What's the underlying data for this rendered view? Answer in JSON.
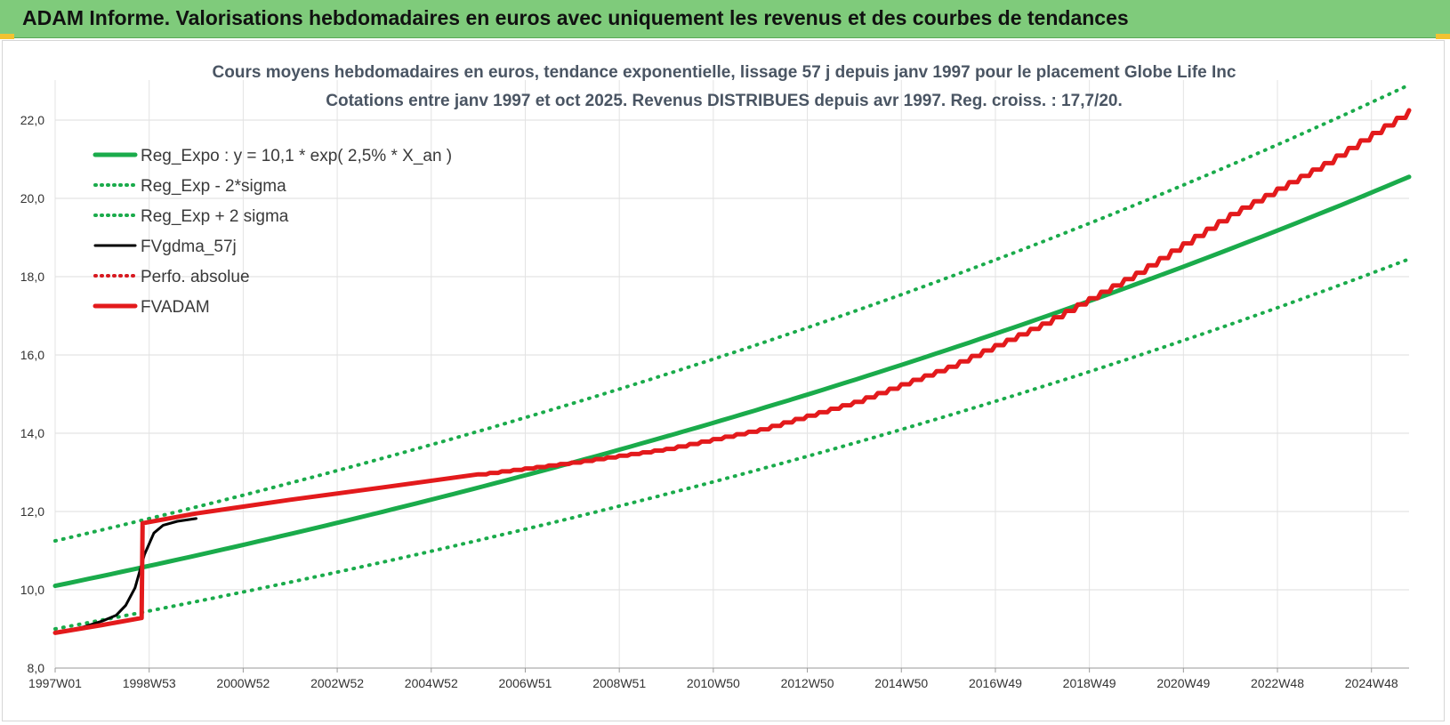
{
  "header": {
    "title": "ADAM Informe. Valorisations hebdomadaires en euros avec uniquement les revenus et des courbes de tendances"
  },
  "chart_data": {
    "type": "line",
    "title_lines": [
      "Cours moyens hebdomadaires en euros, tendance exponentielle, lissage 57 j depuis janv 1997 pour le placement Globe Life Inc",
      "Cotations entre janv 1997 et oct 2025. Revenus DISTRIBUES depuis avr 1997. Reg. croiss. : 17,7/20."
    ],
    "xlabel": "",
    "ylabel": "",
    "xlim": [
      1997.0,
      2025.8
    ],
    "ylim": [
      8.0,
      23.0
    ],
    "y_ticks": [
      8.0,
      10.0,
      12.0,
      14.0,
      16.0,
      18.0,
      20.0,
      22.0
    ],
    "y_tick_labels": [
      "8,0",
      "10,0",
      "12,0",
      "14,0",
      "16,0",
      "18,0",
      "20,0",
      "22,0"
    ],
    "x_ticks": [
      1997.0,
      1999.0,
      2001.0,
      2003.0,
      2005.0,
      2007.0,
      2009.0,
      2011.0,
      2013.0,
      2015.0,
      2017.0,
      2019.0,
      2021.0,
      2023.0,
      2025.0
    ],
    "x_tick_labels": [
      "1997W01",
      "1998W53",
      "2000W52",
      "2002W52",
      "2004W52",
      "2006W51",
      "2008W51",
      "2010W50",
      "2012W50",
      "2014W50",
      "2016W49",
      "2018W49",
      "2020W49",
      "2022W48",
      "2024W48"
    ],
    "grid": true,
    "legend_position": "top-left",
    "series": [
      {
        "name": "Reg_Expo : y = 10,1 * exp( 2,5% *  X_an )",
        "style": "solid-thick",
        "color": "#1aab4b",
        "x": [
          1997.0,
          2001.0,
          2005.0,
          2009.0,
          2013.0,
          2017.0,
          2021.0,
          2025.8
        ],
        "values": [
          10.1,
          11.17,
          12.34,
          13.64,
          15.07,
          16.65,
          18.4,
          20.55
        ]
      },
      {
        "name": "Reg_Exp - 2*sigma",
        "style": "dotted",
        "color": "#1aab4b",
        "x": [
          1997.0,
          2001.0,
          2005.0,
          2009.0,
          2013.0,
          2017.0,
          2021.0,
          2025.8
        ],
        "values": [
          9.0,
          9.95,
          10.99,
          12.15,
          13.43,
          14.84,
          16.4,
          18.45
        ]
      },
      {
        "name": "Reg_Exp + 2 sigma",
        "style": "dotted",
        "color": "#1aab4b",
        "x": [
          1997.0,
          2001.0,
          2005.0,
          2009.0,
          2013.0,
          2017.0,
          2021.0,
          2025.8
        ],
        "values": [
          11.25,
          12.43,
          13.74,
          15.19,
          16.79,
          18.55,
          20.5,
          22.9
        ]
      },
      {
        "name": "FVgdma_57j",
        "style": "solid",
        "color": "#000000",
        "x": [
          1997.0,
          1997.6,
          1998.0,
          1998.3,
          1998.5,
          1998.7,
          1998.9,
          1999.1,
          1999.3,
          1999.6,
          2000.0
        ],
        "values": [
          8.9,
          9.05,
          9.2,
          9.35,
          9.6,
          10.05,
          10.9,
          11.45,
          11.65,
          11.75,
          11.82
        ]
      },
      {
        "name": "Perfo. absolue",
        "style": "dotted",
        "color": "#d71920",
        "x": [],
        "values": []
      },
      {
        "name": "FVADAM",
        "style": "solid-thick",
        "color": "#e31a1c",
        "x": [
          1997.0,
          1997.5,
          1998.0,
          1998.84,
          1998.86,
          2000.0,
          2002.0,
          2004.0,
          2006.0,
          2008.0,
          2010.0,
          2012.0,
          2014.0,
          2016.0,
          2018.0,
          2020.0,
          2022.0,
          2024.0,
          2025.8
        ],
        "values": [
          8.9,
          9.0,
          9.1,
          9.28,
          11.7,
          11.95,
          12.3,
          12.62,
          12.95,
          13.25,
          13.6,
          14.1,
          14.8,
          15.7,
          16.8,
          18.1,
          19.6,
          20.9,
          22.25
        ]
      }
    ]
  }
}
